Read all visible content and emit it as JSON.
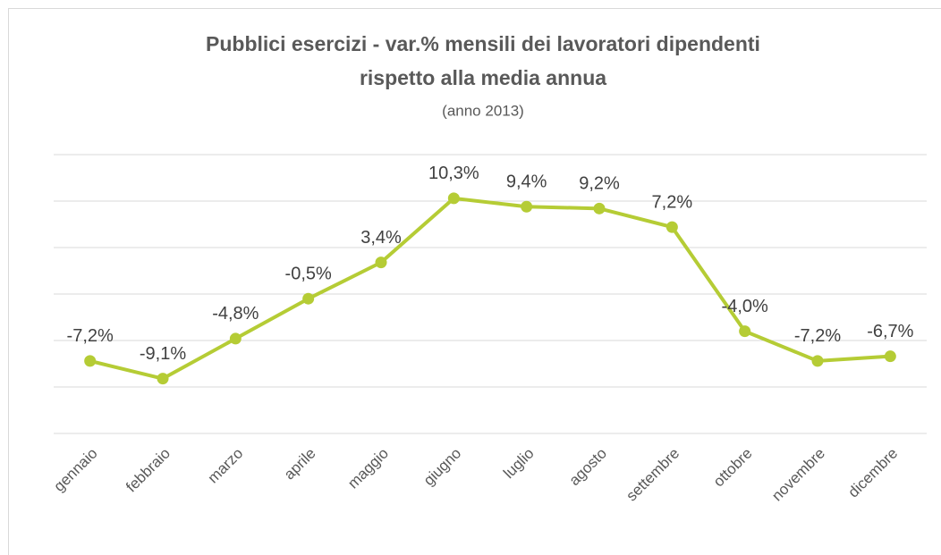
{
  "chart_data": {
    "type": "line",
    "title": [
      "Pubblici esercizi - var.% mensili dei lavoratori dipendenti",
      "rispetto alla media annua"
    ],
    "subtitle": "(anno 2013)",
    "categories": [
      "gennaio",
      "febbraio",
      "marzo",
      "aprile",
      "maggio",
      "giugno",
      "luglio",
      "agosto",
      "settembre",
      "ottobre",
      "novembre",
      "dicembre"
    ],
    "series": [
      {
        "name": "var.%",
        "color": "#b5cc35",
        "values": [
          -7.2,
          -9.1,
          -4.8,
          -0.5,
          3.4,
          10.3,
          9.4,
          9.2,
          7.2,
          -4.0,
          -7.2,
          -6.7
        ],
        "value_labels": [
          "-7,2%",
          "-9,1%",
          "-4,8%",
          "-0,5%",
          "3,4%",
          "10,3%",
          "9,4%",
          "9,2%",
          "7,2%",
          "-4,0%",
          "-7,2%",
          "-6,7%"
        ]
      }
    ],
    "ylim": [
      -15,
      15
    ],
    "yticks": [
      -15,
      -10,
      -5,
      0,
      5,
      10,
      15
    ],
    "grid": true
  }
}
